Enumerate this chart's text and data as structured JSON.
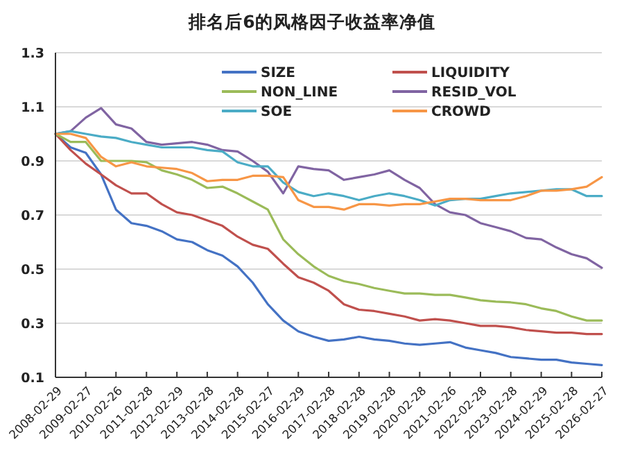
{
  "chart_data": {
    "type": "line",
    "title": "排名后6的风格因子收益率净值",
    "x": [
      "2008-02-29",
      "2008-08-29",
      "2009-02-27",
      "2009-08-31",
      "2010-02-26",
      "2010-08-31",
      "2011-02-28",
      "2011-08-31",
      "2012-02-29",
      "2012-08-31",
      "2013-02-28",
      "2013-08-30",
      "2014-02-28",
      "2014-08-29",
      "2015-02-27",
      "2015-08-31",
      "2016-02-29",
      "2016-08-31",
      "2017-02-28",
      "2017-08-31",
      "2018-02-28",
      "2018-08-31",
      "2019-02-28",
      "2019-08-30",
      "2020-02-28",
      "2020-08-31",
      "2021-02-26",
      "2021-08-31",
      "2022-02-28",
      "2022-08-31",
      "2023-02-28",
      "2023-08-31",
      "2024-02-29",
      "2024-08-30",
      "2025-02-28",
      "2025-08-29",
      "2026-02-27"
    ],
    "series": [
      {
        "name": "SIZE",
        "color": "#4472c4",
        "values": [
          1.0,
          0.95,
          0.93,
          0.85,
          0.72,
          0.67,
          0.66,
          0.64,
          0.61,
          0.6,
          0.57,
          0.55,
          0.51,
          0.45,
          0.37,
          0.31,
          0.27,
          0.25,
          0.235,
          0.24,
          0.25,
          0.24,
          0.235,
          0.225,
          0.22,
          0.225,
          0.23,
          0.21,
          0.2,
          0.19,
          0.175,
          0.17,
          0.165,
          0.165,
          0.155,
          0.15,
          0.145
        ]
      },
      {
        "name": "LIQUIDITY",
        "color": "#c0504d",
        "values": [
          1.0,
          0.94,
          0.89,
          0.85,
          0.81,
          0.78,
          0.78,
          0.74,
          0.71,
          0.7,
          0.68,
          0.66,
          0.62,
          0.59,
          0.575,
          0.52,
          0.47,
          0.45,
          0.42,
          0.37,
          0.35,
          0.345,
          0.335,
          0.325,
          0.31,
          0.315,
          0.31,
          0.3,
          0.29,
          0.29,
          0.285,
          0.275,
          0.27,
          0.265,
          0.265,
          0.26,
          0.26
        ]
      },
      {
        "name": "NON_LINE",
        "color": "#9bbb59",
        "values": [
          1.0,
          0.97,
          0.97,
          0.9,
          0.9,
          0.9,
          0.895,
          0.865,
          0.85,
          0.83,
          0.8,
          0.805,
          0.78,
          0.75,
          0.72,
          0.61,
          0.555,
          0.51,
          0.475,
          0.455,
          0.445,
          0.43,
          0.42,
          0.41,
          0.41,
          0.405,
          0.405,
          0.395,
          0.385,
          0.38,
          0.377,
          0.37,
          0.355,
          0.345,
          0.325,
          0.31,
          0.31
        ]
      },
      {
        "name": "RESID_VOL",
        "color": "#8064a2",
        "values": [
          1.0,
          1.01,
          1.06,
          1.095,
          1.035,
          1.02,
          0.97,
          0.96,
          0.965,
          0.97,
          0.96,
          0.94,
          0.935,
          0.9,
          0.86,
          0.78,
          0.88,
          0.87,
          0.865,
          0.83,
          0.84,
          0.85,
          0.865,
          0.83,
          0.8,
          0.74,
          0.71,
          0.7,
          0.67,
          0.655,
          0.64,
          0.615,
          0.61,
          0.58,
          0.555,
          0.54,
          0.505
        ]
      },
      {
        "name": "SOE",
        "color": "#4bacc6",
        "values": [
          1.0,
          1.01,
          1.0,
          0.99,
          0.985,
          0.97,
          0.96,
          0.95,
          0.95,
          0.95,
          0.94,
          0.935,
          0.895,
          0.88,
          0.88,
          0.82,
          0.785,
          0.77,
          0.78,
          0.77,
          0.755,
          0.77,
          0.78,
          0.77,
          0.755,
          0.735,
          0.755,
          0.76,
          0.76,
          0.77,
          0.78,
          0.785,
          0.79,
          0.795,
          0.795,
          0.77,
          0.77
        ]
      },
      {
        "name": "CROWD",
        "color": "#f79646",
        "values": [
          1.0,
          1.0,
          0.985,
          0.915,
          0.88,
          0.895,
          0.88,
          0.875,
          0.87,
          0.855,
          0.825,
          0.83,
          0.83,
          0.845,
          0.845,
          0.84,
          0.755,
          0.73,
          0.73,
          0.72,
          0.74,
          0.74,
          0.735,
          0.74,
          0.74,
          0.75,
          0.76,
          0.76,
          0.755,
          0.755,
          0.755,
          0.77,
          0.79,
          0.79,
          0.795,
          0.805,
          0.84
        ]
      }
    ],
    "xlim": [
      "2008-02-29",
      "2026-02-27"
    ],
    "xticks": [
      "2008-02-29",
      "2009-02-27",
      "2010-02-26",
      "2011-02-28",
      "2012-02-29",
      "2013-02-28",
      "2014-02-28",
      "2015-02-27",
      "2016-02-29",
      "2017-02-28",
      "2018-02-28",
      "2019-02-28",
      "2020-02-28",
      "2021-02-26",
      "2022-02-28",
      "2023-02-28",
      "2024-02-29",
      "2025-02-28",
      "2026-02-27"
    ],
    "ylim": [
      0.1,
      1.3
    ],
    "yticks": [
      0.1,
      0.3,
      0.5,
      0.7,
      0.9,
      1.1,
      1.3
    ],
    "grid": "y",
    "legend": "top"
  }
}
